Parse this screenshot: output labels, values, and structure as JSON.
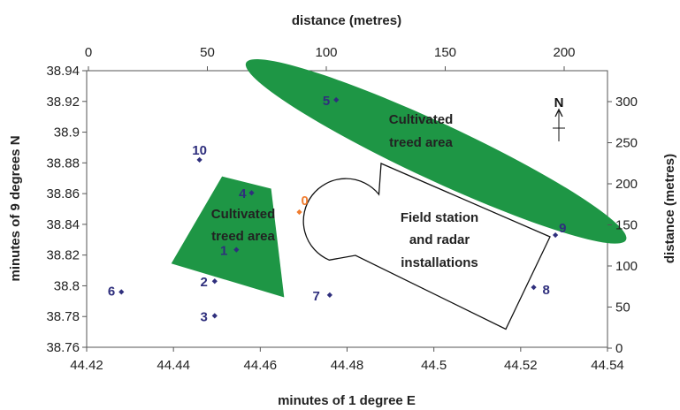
{
  "chart_data": {
    "type": "scatter",
    "xlabel_bottom": "minutes of 1 degree E",
    "xlabel_top": "distance (metres)",
    "ylabel_left": "minutes of 9 degrees N",
    "ylabel_right": "distance (metres)",
    "xlim": [
      44.42,
      44.54
    ],
    "ylim": [
      38.76,
      38.94
    ],
    "x_ticks": [
      "44.42",
      "44.44",
      "44.46",
      "44.48",
      "44.5",
      "44.52",
      "44.54"
    ],
    "y_ticks": [
      "38.76",
      "38.78",
      "38.8",
      "38.82",
      "38.84",
      "38.86",
      "38.88",
      "38.9",
      "38.92",
      "38.94"
    ],
    "top_ticks": [
      "0",
      "50",
      "100",
      "150",
      "200"
    ],
    "right_ticks": [
      "0",
      "50",
      "100",
      "150",
      "200",
      "250",
      "300"
    ],
    "grid": false,
    "points": [
      {
        "label": "0",
        "x": 44.469,
        "y": 38.848,
        "color": "#f07c2e"
      },
      {
        "label": "1",
        "x": 44.4545,
        "y": 38.8235,
        "color": "#2f2f7d"
      },
      {
        "label": "2",
        "x": 44.4495,
        "y": 38.803,
        "color": "#2f2f7d"
      },
      {
        "label": "3",
        "x": 44.4495,
        "y": 38.7805,
        "color": "#2f2f7d"
      },
      {
        "label": "4",
        "x": 44.458,
        "y": 38.8605,
        "color": "#2f2f7d"
      },
      {
        "label": "5",
        "x": 44.4775,
        "y": 38.921,
        "color": "#2f2f7d"
      },
      {
        "label": "6",
        "x": 44.428,
        "y": 38.796,
        "color": "#2f2f7d"
      },
      {
        "label": "7",
        "x": 44.476,
        "y": 38.794,
        "color": "#2f2f7d"
      },
      {
        "label": "8",
        "x": 44.523,
        "y": 38.799,
        "color": "#2f2f7d"
      },
      {
        "label": "9",
        "x": 44.528,
        "y": 38.833,
        "color": "#2f2f7d"
      },
      {
        "label": "10",
        "x": 44.446,
        "y": 38.882,
        "color": "#2f2f7d"
      }
    ],
    "areas": [
      {
        "label_line1": "Cultivated",
        "label_line2": "treed area",
        "color": "#1e9645",
        "polygon": [
          [
            44.4395,
            38.8145
          ],
          [
            44.4512,
            38.8712
          ],
          [
            44.4625,
            38.8632
          ],
          [
            44.4655,
            38.7925
          ]
        ]
      },
      {
        "label_line1": "Cultivated",
        "label_line2": "treed area",
        "color": "#1e9645",
        "ellipse": {
          "cx": 44.5005,
          "cy": 38.8875,
          "rx": 0.023,
          "ry": 0.0255,
          "rotation_deg": 25
        }
      },
      {
        "label_line1": "Field station",
        "label_line2": "and radar",
        "label_line3": "installations",
        "color": "#ffffff"
      }
    ],
    "north_label": "N"
  }
}
